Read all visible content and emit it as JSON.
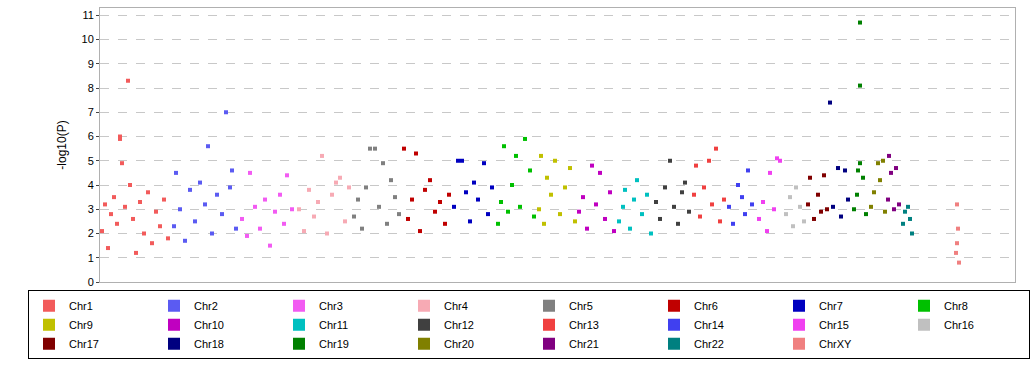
{
  "chart_data": {
    "type": "scatter",
    "y_label": "-log10(P)",
    "xlim": [
      0,
      915
    ],
    "ylim": [
      0,
      11.3
    ],
    "yticks": [
      0,
      1,
      2,
      3,
      4,
      5,
      6,
      7,
      8,
      9,
      10,
      11
    ],
    "grid": true,
    "legend": "bottom",
    "tick_labels": "y",
    "marker": "square",
    "series": [
      {
        "name": "Chr1",
        "color": "#f25b5b",
        "x": [
          2,
          5,
          8,
          11,
          14,
          17,
          20,
          20,
          22,
          25,
          28,
          30,
          33,
          36,
          40,
          44,
          48,
          52,
          56,
          60,
          64,
          68
        ],
        "values": [
          2.1,
          3.2,
          1.4,
          2.8,
          3.5,
          2.4,
          6.0,
          5.9,
          4.9,
          3.1,
          8.3,
          4.0,
          2.6,
          1.2,
          3.3,
          2.0,
          3.7,
          1.6,
          2.9,
          2.3,
          3.4,
          1.8
        ]
      },
      {
        "name": "Chr2",
        "color": "#5b5bf2",
        "x": [
          74,
          76,
          80,
          85,
          90,
          95,
          100,
          105,
          108,
          112,
          117,
          122,
          126,
          130,
          132,
          136
        ],
        "values": [
          2.3,
          4.5,
          3.0,
          1.7,
          3.8,
          2.5,
          4.1,
          3.2,
          5.6,
          2.0,
          3.6,
          2.8,
          7.0,
          3.9,
          4.6,
          2.2
        ]
      },
      {
        "name": "Chr3",
        "color": "#f25bf2",
        "x": [
          142,
          147,
          150,
          155,
          160,
          165,
          170,
          175,
          180,
          184,
          187,
          192
        ],
        "values": [
          2.6,
          1.9,
          4.5,
          3.1,
          2.2,
          3.4,
          1.5,
          2.9,
          3.6,
          2.4,
          4.4,
          3.0
        ]
      },
      {
        "name": "Chr4",
        "color": "#f7aab4",
        "x": [
          199,
          204,
          209,
          214,
          218,
          222,
          227,
          232,
          236,
          240,
          245,
          249
        ],
        "values": [
          3.0,
          2.1,
          3.8,
          2.7,
          3.3,
          5.2,
          2.0,
          3.6,
          4.1,
          4.3,
          2.5,
          3.9
        ]
      },
      {
        "name": "Chr5",
        "color": "#808080",
        "x": [
          254,
          258,
          262,
          266,
          270,
          275,
          279,
          283,
          287,
          291,
          295,
          299
        ],
        "values": [
          2.7,
          3.4,
          2.2,
          3.9,
          5.5,
          5.5,
          3.1,
          4.9,
          2.4,
          4.2,
          3.5,
          2.8
        ]
      },
      {
        "name": "Chr6",
        "color": "#c00000",
        "x": [
          304,
          308,
          312,
          316,
          320,
          325,
          330,
          335,
          340,
          345,
          349
        ],
        "values": [
          5.5,
          2.6,
          3.4,
          5.3,
          2.1,
          3.8,
          4.2,
          2.9,
          3.3,
          2.4,
          3.6
        ]
      },
      {
        "name": "Chr7",
        "color": "#0000c0",
        "x": [
          354,
          358,
          362,
          366,
          370,
          374,
          378,
          384,
          388,
          392
        ],
        "values": [
          3.1,
          5.0,
          5.0,
          3.7,
          2.5,
          4.1,
          3.4,
          4.9,
          2.8,
          3.9
        ]
      },
      {
        "name": "Chr8",
        "color": "#00c000",
        "x": [
          398,
          401,
          404,
          408,
          412,
          416,
          420,
          425,
          430,
          434
        ],
        "values": [
          2.4,
          3.3,
          5.6,
          2.9,
          4.0,
          5.2,
          3.1,
          5.9,
          4.6,
          2.7
        ]
      },
      {
        "name": "Chr9",
        "color": "#c0c000",
        "x": [
          439,
          441,
          444,
          447,
          451,
          455,
          460,
          465,
          470,
          475
        ],
        "values": [
          3.0,
          5.2,
          2.4,
          4.3,
          3.6,
          5.0,
          2.8,
          3.9,
          4.7,
          2.5
        ]
      },
      {
        "name": "Chr10",
        "color": "#c000c0",
        "x": [
          479,
          483,
          487,
          492,
          496,
          500,
          505,
          510,
          514
        ],
        "values": [
          2.9,
          3.5,
          2.2,
          4.8,
          3.2,
          4.5,
          2.6,
          3.7,
          2.1
        ]
      },
      {
        "name": "Chr11",
        "color": "#00c0c0",
        "x": [
          519,
          523,
          525,
          530,
          534,
          537,
          542,
          547,
          551
        ],
        "values": [
          2.5,
          3.1,
          3.8,
          2.2,
          3.4,
          4.2,
          2.8,
          3.6,
          2.0
        ]
      },
      {
        "name": "Chr12",
        "color": "#404040",
        "x": [
          556,
          560,
          565,
          570,
          574,
          578,
          582,
          585,
          589
        ],
        "values": [
          3.3,
          2.6,
          3.9,
          5.0,
          3.1,
          2.4,
          3.7,
          4.1,
          2.9
        ]
      },
      {
        "name": "Chr13",
        "color": "#f04040",
        "x": [
          594,
          596,
          600,
          604,
          609,
          612,
          616,
          620,
          624
        ],
        "values": [
          3.6,
          4.8,
          2.7,
          3.9,
          5.0,
          3.2,
          5.5,
          2.5,
          3.4
        ]
      },
      {
        "name": "Chr14",
        "color": "#4040f0",
        "x": [
          629,
          633,
          638,
          642,
          645,
          648,
          652
        ],
        "values": [
          3.1,
          2.4,
          4.0,
          3.5,
          2.8,
          4.6,
          3.2
        ]
      },
      {
        "name": "Chr15",
        "color": "#f040f0",
        "x": [
          659,
          663,
          667,
          670,
          674,
          677,
          680
        ],
        "values": [
          2.6,
          3.3,
          2.1,
          4.5,
          3.0,
          5.1,
          5.0
        ]
      },
      {
        "name": "Chr16",
        "color": "#c0c0c0",
        "x": [
          686,
          690,
          693,
          696,
          700,
          704
        ],
        "values": [
          2.8,
          3.5,
          2.3,
          3.9,
          3.1,
          2.5
        ]
      },
      {
        "name": "Chr17",
        "color": "#800000",
        "x": [
          708,
          710,
          714,
          718,
          721,
          724,
          727
        ],
        "values": [
          3.2,
          4.3,
          2.6,
          3.6,
          2.9,
          4.4,
          3.0
        ]
      },
      {
        "name": "Chr18",
        "color": "#000080",
        "x": [
          730,
          733,
          738,
          741,
          745,
          748
        ],
        "values": [
          7.4,
          3.1,
          4.7,
          2.7,
          4.6,
          3.4
        ]
      },
      {
        "name": "Chr19",
        "color": "#008000",
        "x": [
          754,
          757,
          758,
          760,
          760,
          760,
          763,
          766
        ],
        "values": [
          3.0,
          3.6,
          4.6,
          10.7,
          8.1,
          4.9,
          4.3,
          2.8
        ]
      },
      {
        "name": "Chr20",
        "color": "#808000",
        "x": [
          771,
          774,
          778,
          780,
          783,
          785
        ],
        "values": [
          3.1,
          3.7,
          4.9,
          4.2,
          5.0,
          2.9
        ]
      },
      {
        "name": "Chr21",
        "color": "#800080",
        "x": [
          788,
          789,
          791,
          794,
          796,
          799
        ],
        "values": [
          3.4,
          5.2,
          4.5,
          3.0,
          4.7,
          3.2
        ]
      },
      {
        "name": "Chr22",
        "color": "#008080",
        "x": [
          803,
          805,
          808,
          810,
          812
        ],
        "values": [
          2.4,
          2.9,
          3.1,
          2.6,
          2.0
        ]
      },
      {
        "name": "ChrXY",
        "color": "#f08080",
        "x": [
          856,
          857,
          857,
          858,
          859
        ],
        "values": [
          1.2,
          3.2,
          1.6,
          2.2,
          0.8
        ]
      }
    ]
  }
}
